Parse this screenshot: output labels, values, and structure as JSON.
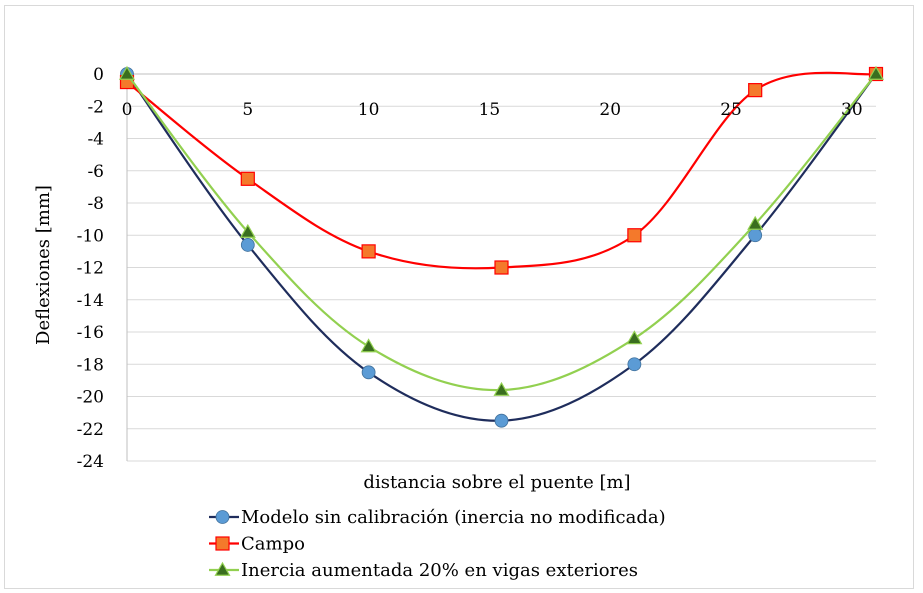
{
  "chart_data": {
    "type": "line",
    "xlabel": "distancia sobre el puente [m]",
    "ylabel": "Deflexiones [mm]",
    "xlim": [
      0,
      31
    ],
    "ylim": [
      -24,
      0
    ],
    "x_ticks": [
      0,
      5,
      10,
      15,
      20,
      25,
      30
    ],
    "y_ticks": [
      0,
      -2,
      -4,
      -6,
      -8,
      -10,
      -12,
      -14,
      -16,
      -18,
      -20,
      -22,
      -24
    ],
    "grid": "horizontal",
    "legend_position": "bottom",
    "series": [
      {
        "name": "Modelo sin calibración (inercia no modificada)",
        "color": "#1f2d5c",
        "marker": "circle",
        "marker_color": "#5b9bd5",
        "x": [
          0,
          5,
          10,
          15.5,
          21,
          26,
          31
        ],
        "y": [
          0,
          -10.6,
          -18.5,
          -21.5,
          -18,
          -10,
          0
        ]
      },
      {
        "name": "Campo",
        "color": "#ff0000",
        "marker": "square",
        "marker_color": "#f4792b",
        "x": [
          0,
          5,
          10,
          15.5,
          21,
          26,
          31
        ],
        "y": [
          -0.5,
          -6.5,
          -11,
          -12,
          -10,
          -1,
          0
        ]
      },
      {
        "name": "Inercia aumentada 20% en vigas exteriores",
        "color": "#92d050",
        "marker": "triangle",
        "marker_color": "#3a6e1f",
        "x": [
          0,
          5,
          10,
          15.5,
          21,
          26,
          31
        ],
        "y": [
          0,
          -9.8,
          -16.9,
          -19.6,
          -16.4,
          -9.3,
          0
        ]
      }
    ]
  }
}
